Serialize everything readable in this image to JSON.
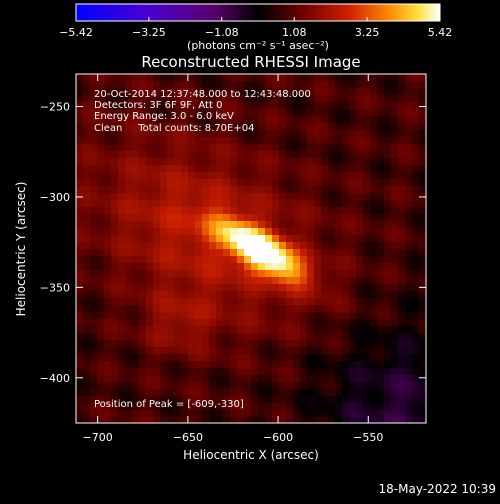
{
  "chart_data": {
    "type": "heatmap",
    "title": "Reconstructed RHESSI Image",
    "xlabel": "Heliocentric X (arcsec)",
    "ylabel": "Heliocentric Y (arcsec)",
    "xlim": [
      -712,
      -518
    ],
    "ylim": [
      -425,
      -232
    ],
    "x_ticks": [
      {
        "value": -700,
        "label": "−700"
      },
      {
        "value": -650,
        "label": "−650"
      },
      {
        "value": -600,
        "label": "−600"
      },
      {
        "value": -550,
        "label": "−550"
      }
    ],
    "y_ticks": [
      {
        "value": -250,
        "label": "−250"
      },
      {
        "value": -300,
        "label": "−300"
      },
      {
        "value": -350,
        "label": "−350"
      },
      {
        "value": -400,
        "label": "−400"
      }
    ],
    "colorbar": {
      "min": -5.42,
      "max": 5.42,
      "ticks": [
        {
          "value": -5.42,
          "label": "−5.42"
        },
        {
          "value": -3.25,
          "label": "−3.25"
        },
        {
          "value": -1.08,
          "label": "−1.08"
        },
        {
          "value": 1.08,
          "label": "1.08"
        },
        {
          "value": 3.25,
          "label": "3.25"
        },
        {
          "value": 5.42,
          "label": "5.42"
        }
      ],
      "unit_label": "(photons cm⁻² s⁻¹ asec⁻²)"
    },
    "annotations": {
      "time_range": "20-Oct-2014 12:37:48.000 to 12:43:48.000",
      "detectors": "Detectors: 3F 6F 9F, Att 0",
      "energy_range": "Energy Range: 3.0 - 6.0 keV",
      "clean": "Clean     Total counts: 8.70E+04",
      "peak": "Position of Peak = [-609,-330]"
    },
    "peak_position": [
      -609,
      -330
    ],
    "sources": [
      {
        "x": -609,
        "y": -330,
        "sigma_major": 18,
        "sigma_minor": 6.5,
        "angle_deg": -32,
        "amplitude": 5.4
      },
      {
        "x": -640,
        "y": -320,
        "sigma_major": 45,
        "sigma_minor": 28,
        "angle_deg": -30,
        "amplitude": 1.6
      },
      {
        "x": -655,
        "y": -370,
        "sigma_major": 14,
        "sigma_minor": 12,
        "angle_deg": 0,
        "amplitude": 0.9
      }
    ],
    "background_level": 0.6,
    "grid": false
  },
  "footer": {
    "date": "18-May-2022 10:39"
  }
}
